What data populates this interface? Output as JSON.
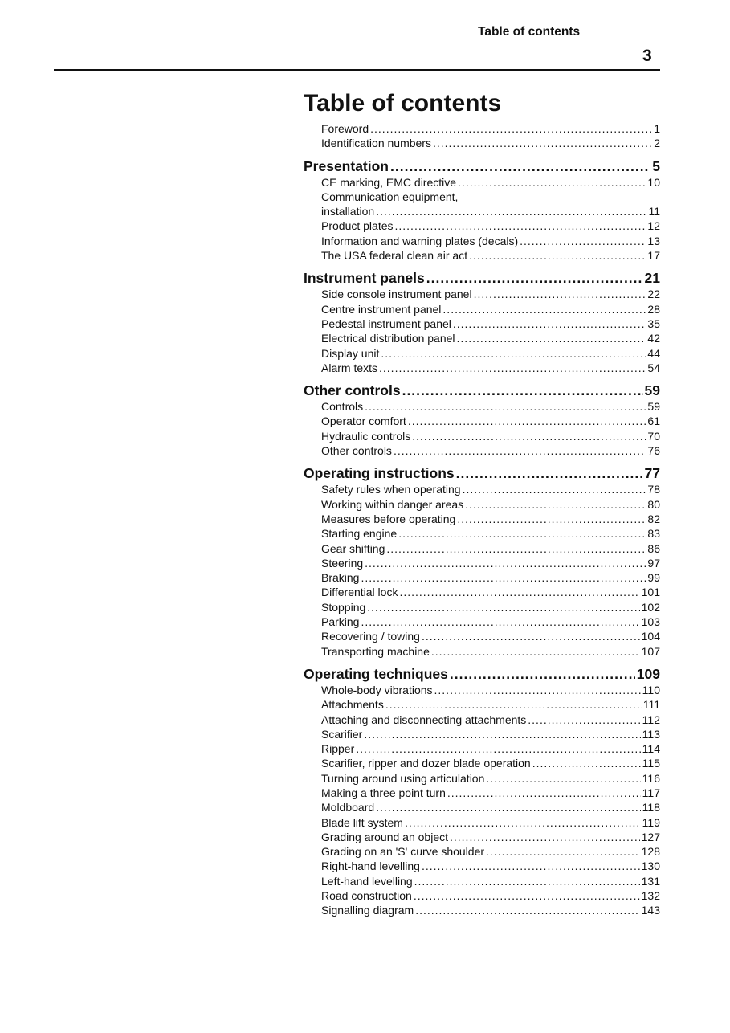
{
  "header": {
    "running_title": "Table of contents",
    "page_number": "3"
  },
  "title": "Table of contents",
  "intro": [
    {
      "label": "Foreword",
      "page": "1"
    },
    {
      "label": "Identification numbers",
      "page": "2"
    }
  ],
  "sections": [
    {
      "title": "Presentation",
      "page": "5",
      "entries": [
        {
          "label": "CE marking, EMC directive",
          "page": "10"
        },
        {
          "label": "Communication equipment,",
          "page": ""
        },
        {
          "label": "installation",
          "page": "11"
        },
        {
          "label": "Product plates",
          "page": "12"
        },
        {
          "label": "Information and warning plates (decals)",
          "page": "13"
        },
        {
          "label": "The USA federal clean air act",
          "page": "17"
        }
      ]
    },
    {
      "title": "Instrument panels",
      "page": "21",
      "entries": [
        {
          "label": "Side console instrument panel",
          "page": "22"
        },
        {
          "label": "Centre instrument panel",
          "page": "28"
        },
        {
          "label": "Pedestal instrument panel",
          "page": "35"
        },
        {
          "label": "Electrical distribution panel",
          "page": "42"
        },
        {
          "label": "Display unit",
          "page": "44"
        },
        {
          "label": "Alarm texts",
          "page": "54"
        }
      ]
    },
    {
      "title": "Other controls",
      "page": "59",
      "entries": [
        {
          "label": "Controls",
          "page": "59"
        },
        {
          "label": "Operator comfort",
          "page": "61"
        },
        {
          "label": "Hydraulic controls",
          "page": "70"
        },
        {
          "label": "Other controls",
          "page": "76"
        }
      ]
    },
    {
      "title": "Operating instructions",
      "page": "77",
      "entries": [
        {
          "label": "Safety rules when operating",
          "page": "78"
        },
        {
          "label": "Working within danger areas",
          "page": "80"
        },
        {
          "label": "Measures before operating",
          "page": "82"
        },
        {
          "label": "Starting engine",
          "page": "83"
        },
        {
          "label": "Gear shifting",
          "page": "86"
        },
        {
          "label": "Steering",
          "page": "97"
        },
        {
          "label": "Braking",
          "page": "99"
        },
        {
          "label": "Differential lock",
          "page": "101"
        },
        {
          "label": "Stopping",
          "page": "102"
        },
        {
          "label": "Parking",
          "page": "103"
        },
        {
          "label": "Recovering / towing",
          "page": "104"
        },
        {
          "label": "Transporting machine",
          "page": "107"
        }
      ]
    },
    {
      "title": "Operating techniques",
      "page": "109",
      "entries": [
        {
          "label": "Whole-body vibrations",
          "page": "110"
        },
        {
          "label": "Attachments",
          "page": "111"
        },
        {
          "label": "Attaching and disconnecting attachments",
          "page": "112"
        },
        {
          "label": "Scarifier",
          "page": "113"
        },
        {
          "label": "Ripper",
          "page": "114"
        },
        {
          "label": "Scarifier, ripper and dozer blade operation",
          "page": "115"
        },
        {
          "label": "Turning around using articulation",
          "page": "116"
        },
        {
          "label": "Making a three point turn",
          "page": "117"
        },
        {
          "label": "Moldboard",
          "page": "118"
        },
        {
          "label": "Blade lift system",
          "page": "119"
        },
        {
          "label": "Grading around an object",
          "page": "127"
        },
        {
          "label": "Grading on an 'S' curve shoulder",
          "page": "128"
        },
        {
          "label": "Right-hand levelling",
          "page": "130"
        },
        {
          "label": "Left-hand levelling",
          "page": "131"
        },
        {
          "label": "Road construction",
          "page": "132"
        },
        {
          "label": "Signalling diagram",
          "page": "143"
        }
      ]
    }
  ]
}
